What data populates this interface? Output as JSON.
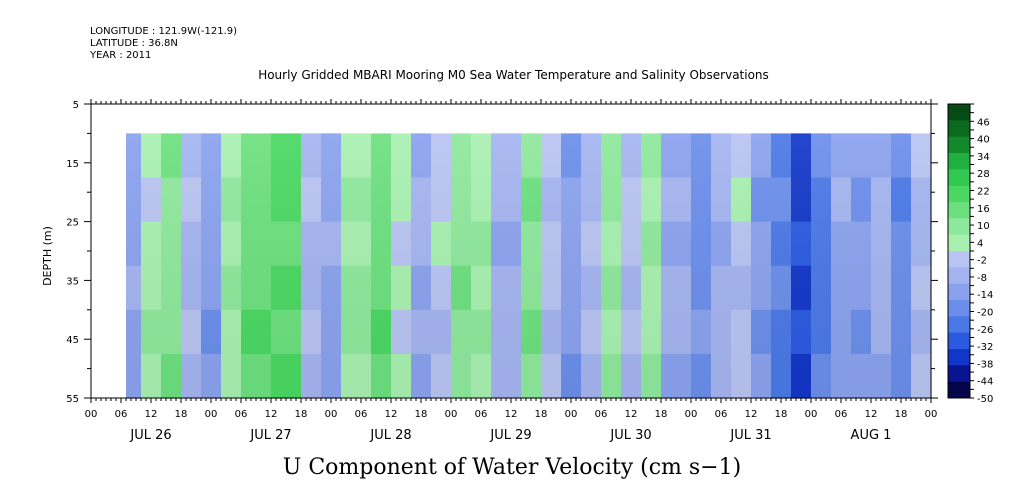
{
  "header": {
    "longitude": "LONGITUDE : 121.9W(-121.9)",
    "latitude": "LATITUDE : 36.8N",
    "year": "YEAR : 2011"
  },
  "chart_data": {
    "type": "heatmap",
    "title": "Hourly Gridded MBARI Mooring M0 Sea Water Temperature and Salinity Observations",
    "xlabel": "U Component of Water Velocity (cm s−1)",
    "ylabel": "DEPTH (m)",
    "y_ticks": [
      5,
      15,
      25,
      35,
      45,
      55
    ],
    "ylim": [
      5,
      55
    ],
    "y_reversed": true,
    "data_depth_range": [
      10,
      55
    ],
    "x_hour_labels": [
      "00",
      "06",
      "12",
      "18",
      "00",
      "06",
      "12",
      "18",
      "00",
      "06",
      "12",
      "18",
      "00",
      "06",
      "12",
      "18",
      "00",
      "06",
      "12",
      "18",
      "00",
      "06",
      "12",
      "18",
      "00",
      "06",
      "12",
      "18",
      "00"
    ],
    "x_day_labels": [
      "JUL 26",
      "JUL 27",
      "JUL 28",
      "JUL 29",
      "JUL 30",
      "JUL 31",
      "AUG  1"
    ],
    "data_start_hour": 7,
    "data_end_hour": 168,
    "colorbar_levels": [
      46,
      40,
      34,
      28,
      22,
      16,
      10,
      4,
      -2,
      -8,
      -14,
      -20,
      -26,
      -32,
      -38,
      -44,
      -50
    ],
    "colorbar_range": [
      -50,
      52
    ],
    "colormap": [
      "#05064a",
      "#0a1490",
      "#1236c8",
      "#2a5ae0",
      "#4a78e6",
      "#6a8eea",
      "#8aa2ee",
      "#a4b4f0",
      "#b8c4f2",
      "#a8f0b0",
      "#8ee89c",
      "#6ce07e",
      "#4ad862",
      "#30c850",
      "#20b040",
      "#128a2c",
      "#0a6a20",
      "#064a16"
    ],
    "bands": [
      {
        "x": [
          7,
          10
        ],
        "v": -12
      },
      {
        "x": [
          10,
          14
        ],
        "v": 4
      },
      {
        "x": [
          14,
          18
        ],
        "v": 10
      },
      {
        "x": [
          18,
          22
        ],
        "v": -6
      },
      {
        "x": [
          22,
          26
        ],
        "v": -14
      },
      {
        "x": [
          26,
          30
        ],
        "v": 6
      },
      {
        "x": [
          30,
          36
        ],
        "v": 16
      },
      {
        "x": [
          36,
          42
        ],
        "v": 18
      },
      {
        "x": [
          42,
          46
        ],
        "v": -6
      },
      {
        "x": [
          46,
          50
        ],
        "v": -12
      },
      {
        "x": [
          50,
          56
        ],
        "v": 8
      },
      {
        "x": [
          56,
          60
        ],
        "v": 16
      },
      {
        "x": [
          60,
          64
        ],
        "v": 2
      },
      {
        "x": [
          64,
          68
        ],
        "v": -10
      },
      {
        "x": [
          68,
          72
        ],
        "v": -2
      },
      {
        "x": [
          72,
          76
        ],
        "v": 10
      },
      {
        "x": [
          76,
          80
        ],
        "v": 6
      },
      {
        "x": [
          80,
          86
        ],
        "v": -8
      },
      {
        "x": [
          86,
          90
        ],
        "v": 12
      },
      {
        "x": [
          90,
          94
        ],
        "v": -4
      },
      {
        "x": [
          94,
          98
        ],
        "v": -14
      },
      {
        "x": [
          98,
          102
        ],
        "v": -6
      },
      {
        "x": [
          102,
          106
        ],
        "v": 8
      },
      {
        "x": [
          106,
          110
        ],
        "v": -4
      },
      {
        "x": [
          110,
          114
        ],
        "v": 6
      },
      {
        "x": [
          114,
          120
        ],
        "v": -10
      },
      {
        "x": [
          120,
          124
        ],
        "v": -18
      },
      {
        "x": [
          124,
          128
        ],
        "v": -8
      },
      {
        "x": [
          128,
          132
        ],
        "v": -2
      },
      {
        "x": [
          132,
          136
        ],
        "v": -16
      },
      {
        "x": [
          136,
          140
        ],
        "v": -22
      },
      {
        "x": [
          140,
          144
        ],
        "v": -34
      },
      {
        "x": [
          144,
          148
        ],
        "v": -24
      },
      {
        "x": [
          148,
          152
        ],
        "v": -12
      },
      {
        "x": [
          152,
          156
        ],
        "v": -16
      },
      {
        "x": [
          156,
          160
        ],
        "v": -8
      },
      {
        "x": [
          160,
          164
        ],
        "v": -20
      },
      {
        "x": [
          164,
          168
        ],
        "v": -6
      }
    ]
  }
}
